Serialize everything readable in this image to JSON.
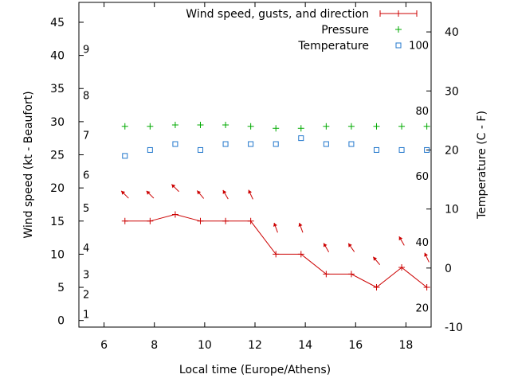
{
  "chart_data": {
    "type": "line",
    "xlabel": "Local time (Europe/Athens)",
    "ylabel_left": "Wind speed (kt - Beaufort)",
    "ylabel_right": "Temperature (C - F)",
    "x_range": [
      5,
      19
    ],
    "x_ticks": [
      6,
      8,
      10,
      12,
      14,
      16,
      18
    ],
    "y_left_range": [
      -1,
      48
    ],
    "y_left_ticks": [
      0,
      5,
      10,
      15,
      20,
      25,
      30,
      35,
      40,
      45
    ],
    "y_right_range": [
      -10,
      45
    ],
    "y_right_ticks": [
      -10,
      0,
      10,
      20,
      30,
      40
    ],
    "beaufort_labels": [
      {
        "label": "1",
        "kt": 1
      },
      {
        "label": "2",
        "kt": 4
      },
      {
        "label": "3",
        "kt": 7
      },
      {
        "label": "4",
        "kt": 11
      },
      {
        "label": "5",
        "kt": 17
      },
      {
        "label": "6",
        "kt": 22
      },
      {
        "label": "7",
        "kt": 28
      },
      {
        "label": "8",
        "kt": 34
      },
      {
        "label": "9",
        "kt": 41
      }
    ],
    "fahrenheit_labels": [
      {
        "label": "20",
        "celsius": -6.7
      },
      {
        "label": "40",
        "celsius": 4.4
      },
      {
        "label": "60",
        "celsius": 15.6
      },
      {
        "label": "80",
        "celsius": 26.7
      },
      {
        "label": "100",
        "celsius": 37.8
      }
    ],
    "series": [
      {
        "name": "Wind speed, gusts, and direction",
        "axis": "left",
        "color": "#cc0000",
        "x": [
          6.83,
          7.83,
          8.83,
          9.83,
          10.83,
          11.83,
          12.83,
          13.83,
          14.83,
          15.83,
          16.83,
          17.83,
          18.83
        ],
        "y": [
          15,
          15,
          16,
          15,
          15,
          15,
          10,
          10,
          7,
          7,
          5,
          8,
          5
        ],
        "gust_arrow_y": [
          19,
          19,
          20,
          19,
          19,
          19,
          14,
          14,
          11,
          11,
          9,
          12,
          9.5
        ],
        "direction_deg": [
          315,
          315,
          315,
          320,
          330,
          335,
          340,
          340,
          330,
          325,
          320,
          330,
          335
        ]
      },
      {
        "name": "Pressure",
        "axis": "left",
        "color": "#00aa00",
        "x": [
          6.83,
          7.83,
          8.83,
          9.83,
          10.83,
          11.83,
          12.83,
          13.83,
          14.83,
          15.83,
          16.83,
          17.83,
          18.83
        ],
        "y": [
          29.3,
          29.3,
          29.5,
          29.5,
          29.5,
          29.3,
          29.0,
          29.0,
          29.3,
          29.3,
          29.3,
          29.3,
          29.3
        ]
      },
      {
        "name": "Temperature",
        "axis": "right",
        "color": "#2277cc",
        "x": [
          6.83,
          7.83,
          8.83,
          9.83,
          10.83,
          11.83,
          12.83,
          13.83,
          14.83,
          15.83,
          16.83,
          17.83,
          18.83
        ],
        "y": [
          19,
          20,
          21,
          20,
          21,
          21,
          21,
          22,
          21,
          21,
          20,
          20,
          20
        ]
      }
    ]
  }
}
